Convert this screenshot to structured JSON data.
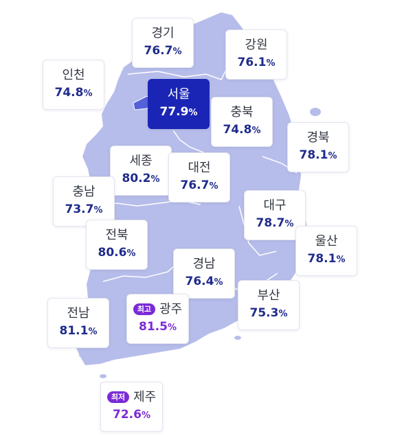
{
  "map": {
    "land_color": "#b7bdea",
    "border_color": "#ffffff",
    "highlight_color": "#5561d8",
    "high_badge": "최고",
    "low_badge": "최저",
    "regions": [
      {
        "key": "gyeonggi",
        "name": "경기",
        "value": "76.7",
        "unit": "%"
      },
      {
        "key": "gangwon",
        "name": "강원",
        "value": "76.1",
        "unit": "%"
      },
      {
        "key": "incheon",
        "name": "인천",
        "value": "74.8",
        "unit": "%"
      },
      {
        "key": "seoul",
        "name": "서울",
        "value": "77.9",
        "unit": "%"
      },
      {
        "key": "chungbuk",
        "name": "충북",
        "value": "74.8",
        "unit": "%"
      },
      {
        "key": "gyeongbuk",
        "name": "경북",
        "value": "78.1",
        "unit": "%"
      },
      {
        "key": "sejong",
        "name": "세종",
        "value": "80.2",
        "unit": "%"
      },
      {
        "key": "daejeon",
        "name": "대전",
        "value": "76.7",
        "unit": "%"
      },
      {
        "key": "chungnam",
        "name": "충남",
        "value": "73.7",
        "unit": "%"
      },
      {
        "key": "daegu",
        "name": "대구",
        "value": "78.7",
        "unit": "%"
      },
      {
        "key": "jeonbuk",
        "name": "전북",
        "value": "80.6",
        "unit": "%"
      },
      {
        "key": "ulsan",
        "name": "울산",
        "value": "78.1",
        "unit": "%"
      },
      {
        "key": "gyeongnam",
        "name": "경남",
        "value": "76.4",
        "unit": "%"
      },
      {
        "key": "jeonnam",
        "name": "전남",
        "value": "81.1",
        "unit": "%"
      },
      {
        "key": "gwangju",
        "name": "광주",
        "value": "81.5",
        "unit": "%"
      },
      {
        "key": "busan",
        "name": "부산",
        "value": "75.3",
        "unit": "%"
      },
      {
        "key": "jeju",
        "name": "제주",
        "value": "72.6",
        "unit": "%"
      }
    ]
  }
}
